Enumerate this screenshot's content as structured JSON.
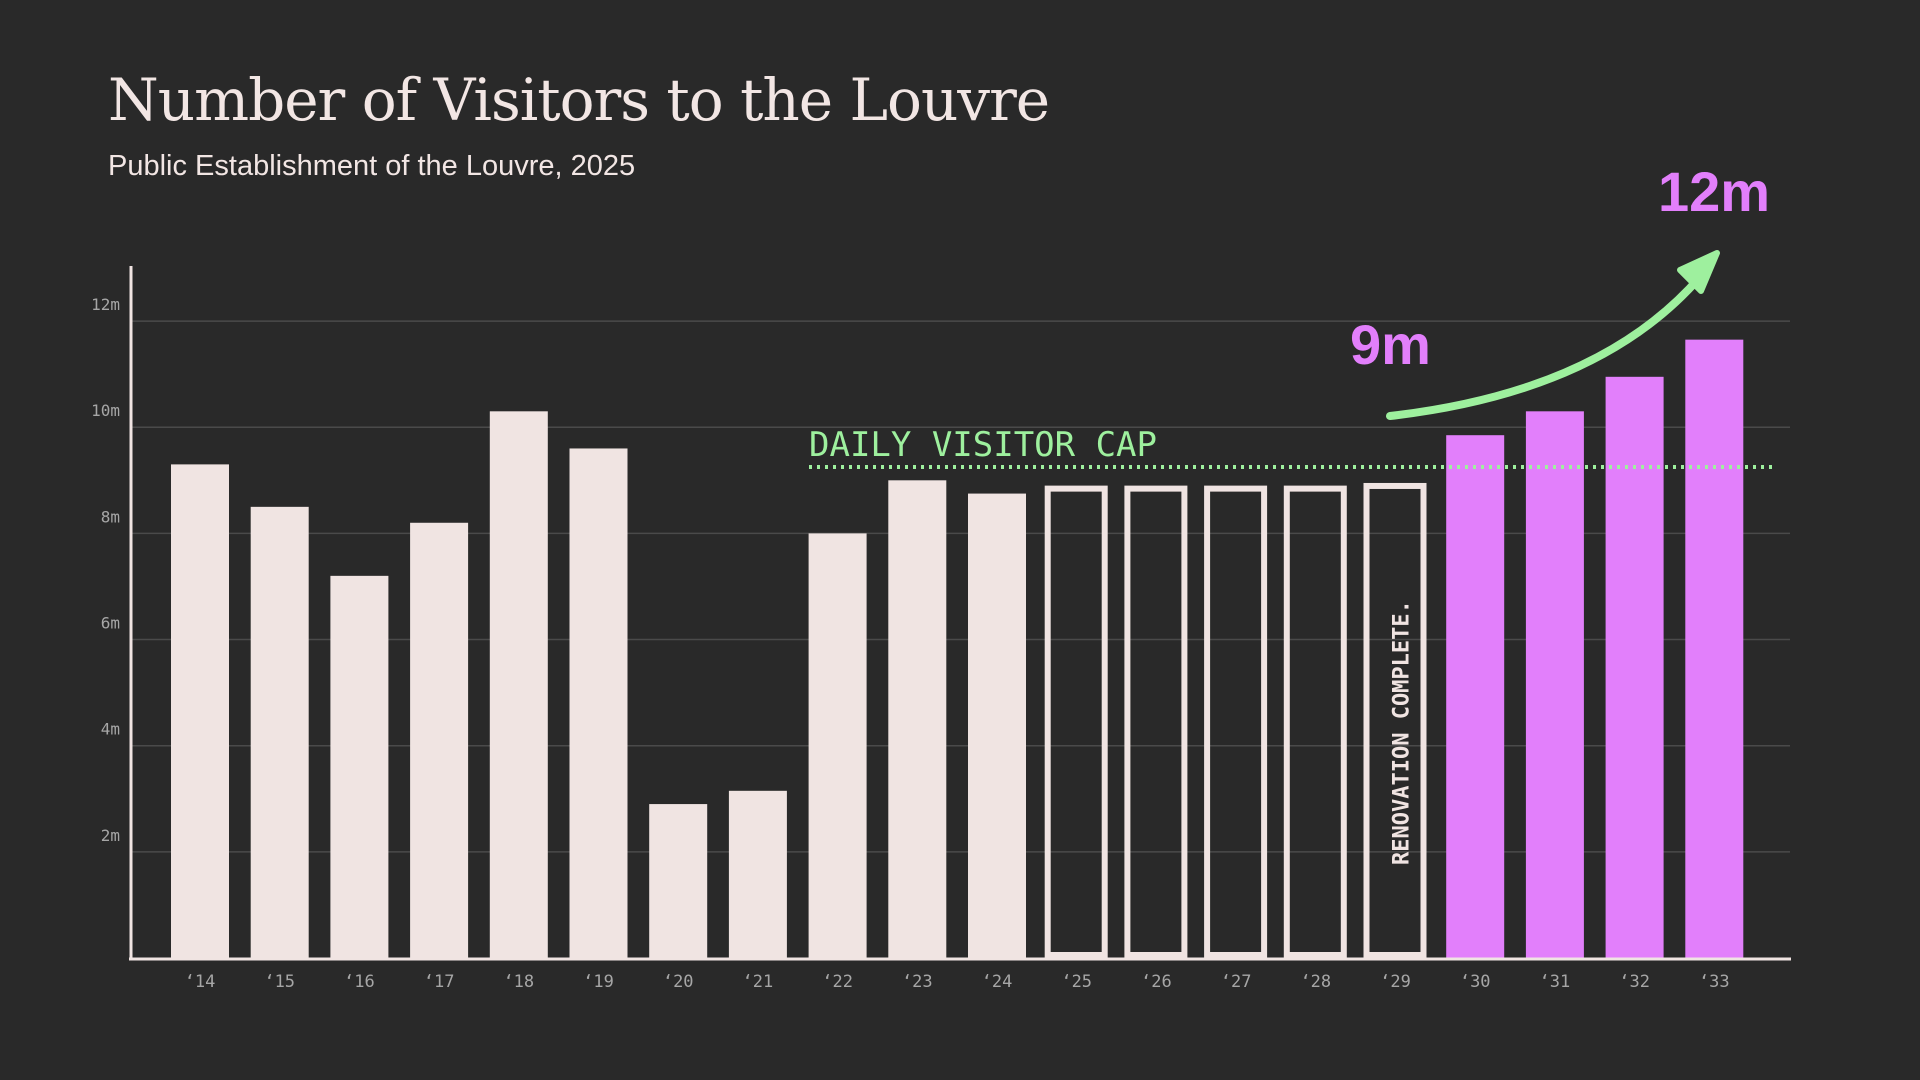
{
  "header": {
    "title": "Number of Visitors to the Louvre",
    "subtitle": "Public Establishment of the Louvre, 2025"
  },
  "chart_data": {
    "type": "bar",
    "categories": [
      "‘14",
      "‘15",
      "‘16",
      "‘17",
      "‘18",
      "‘19",
      "‘20",
      "‘21",
      "‘22",
      "‘23",
      "‘24",
      "‘25",
      "‘26",
      "‘27",
      "‘28",
      "‘29",
      "‘30",
      "‘31",
      "‘32",
      "‘33"
    ],
    "values": [
      9.3,
      8.5,
      7.2,
      8.2,
      10.3,
      9.6,
      2.9,
      3.15,
      8.0,
      9.0,
      8.75,
      8.9,
      8.9,
      8.9,
      8.9,
      8.95,
      9.85,
      10.3,
      10.95,
      11.65
    ],
    "bar_styles": [
      "solid",
      "solid",
      "solid",
      "solid",
      "solid",
      "solid",
      "solid",
      "solid",
      "solid",
      "solid",
      "solid",
      "outline",
      "outline",
      "outline",
      "outline",
      "outline",
      "projected",
      "projected",
      "projected",
      "projected"
    ],
    "y_ticks": [
      2,
      4,
      6,
      8,
      10,
      12
    ],
    "y_tick_labels": [
      "2m",
      "4m",
      "6m",
      "8m",
      "10m",
      "12m"
    ],
    "ylim": [
      0,
      13
    ],
    "grid": true,
    "annotations": {
      "cap_label": "DAILY VISITOR CAP",
      "cap_value": 9.25,
      "renovation_label": "RENOVATION COMPLETE.",
      "start_label": "9m",
      "end_label": "12m"
    },
    "colors": {
      "background": "#292929",
      "bar": "#f0e4e2",
      "projected": "#e27ffb",
      "cap": "#9ef09e",
      "grid": "#4a4a4a",
      "axis": "#f0e4e2",
      "tick_text": "#a6a6a6"
    }
  }
}
